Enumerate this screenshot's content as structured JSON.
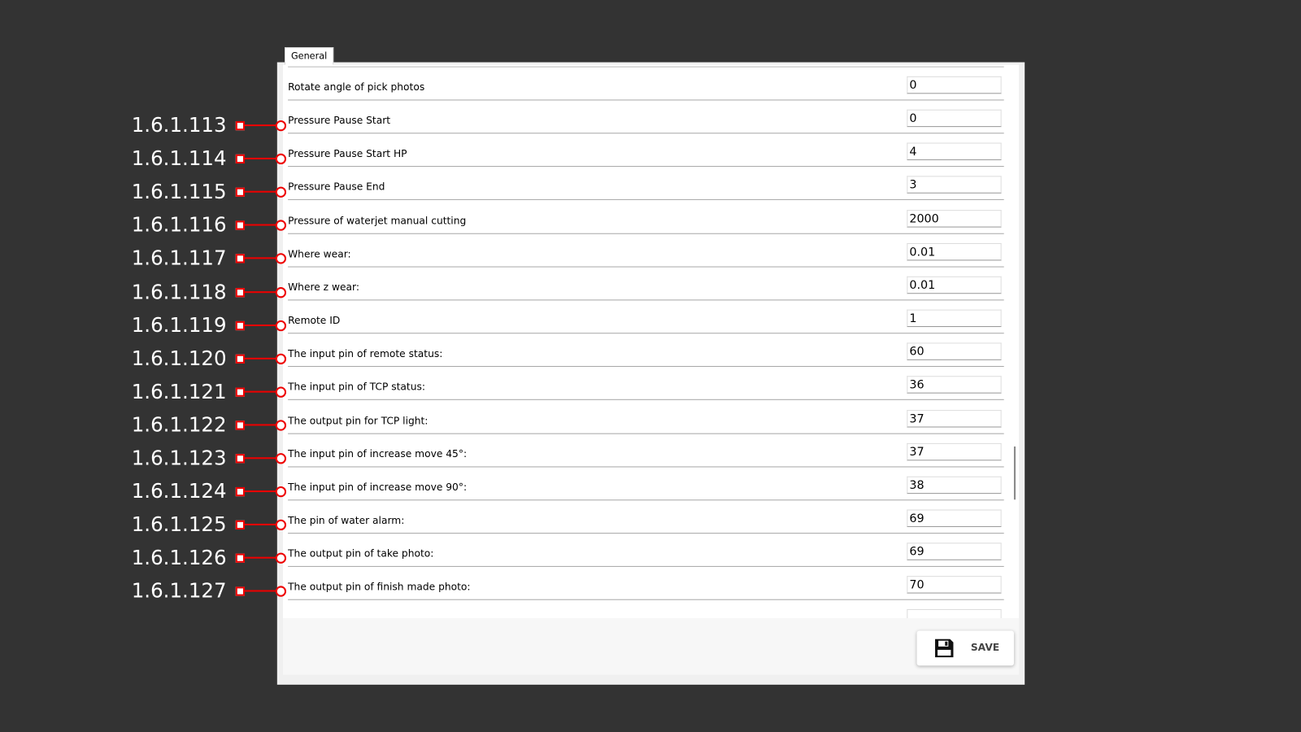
{
  "tab": {
    "label": "General"
  },
  "rows": [
    {
      "label": "Rotate angle of pick photos",
      "value": "0"
    },
    {
      "label": "Pressure Pause Start",
      "value": "0"
    },
    {
      "label": "Pressure Pause Start HP",
      "value": "4"
    },
    {
      "label": "Pressure Pause End",
      "value": "3"
    },
    {
      "label": "Pressure of waterjet manual cutting",
      "value": "2000"
    },
    {
      "label": "Where wear:",
      "value": "0.01"
    },
    {
      "label": "Where z wear:",
      "value": "0.01"
    },
    {
      "label": "Remote ID",
      "value": "1"
    },
    {
      "label": "The input pin of remote status:",
      "value": "60"
    },
    {
      "label": "The input pin of TCP status:",
      "value": "36"
    },
    {
      "label": "The output pin for TCP light:",
      "value": "37"
    },
    {
      "label": "The input pin of increase move 45°:",
      "value": "37"
    },
    {
      "label": "The input pin of increase move 90°:",
      "value": "38"
    },
    {
      "label": "The pin of water alarm:",
      "value": "69"
    },
    {
      "label": "The output pin of take photo:",
      "value": "69"
    },
    {
      "label": "The output pin of finish made photo:",
      "value": "70"
    }
  ],
  "annotations": [
    "1.6.1.113",
    "1.6.1.114",
    "1.6.1.115",
    "1.6.1.116",
    "1.6.1.117",
    "1.6.1.118",
    "1.6.1.119",
    "1.6.1.120",
    "1.6.1.121",
    "1.6.1.122",
    "1.6.1.123",
    "1.6.1.124",
    "1.6.1.125",
    "1.6.1.126",
    "1.6.1.127"
  ],
  "save": {
    "label": "SAVE",
    "icon": "floppy-disk-icon"
  },
  "colors": {
    "annotation": "#e00000",
    "background": "#333333"
  }
}
